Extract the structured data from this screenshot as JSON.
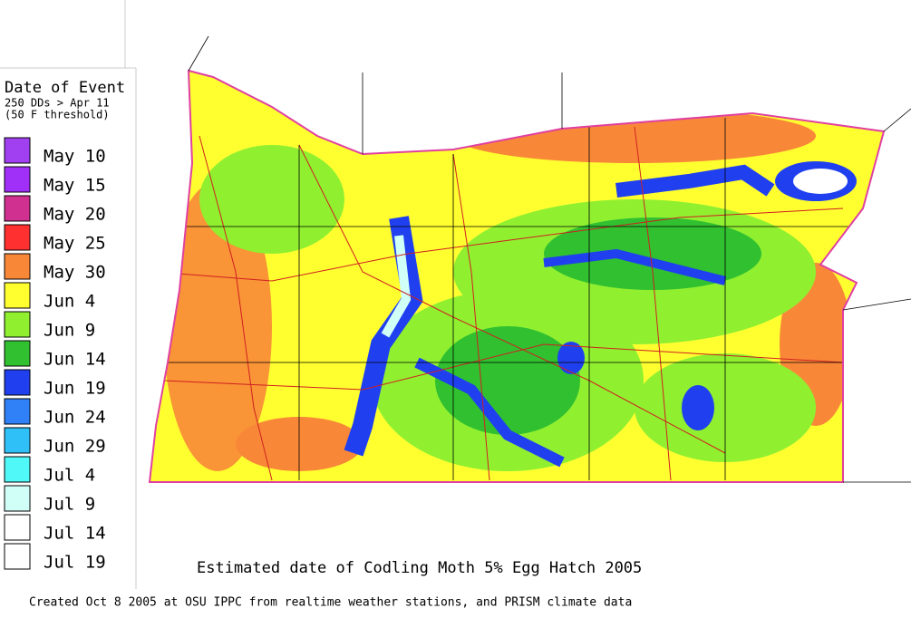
{
  "legend": {
    "title": "Date of Event",
    "subtitle": [
      "250 DDs > Apr 11",
      "(50 F threshold)"
    ],
    "items": [
      {
        "label": "May 10",
        "color": "#a040f0"
      },
      {
        "label": "May 15",
        "color": "#a030f8"
      },
      {
        "label": "May 20",
        "color": "#d03090"
      },
      {
        "label": "May 25",
        "color": "#ff3030"
      },
      {
        "label": "May 30",
        "color": "#f88838"
      },
      {
        "label": "Jun 4",
        "color": "#ffff30"
      },
      {
        "label": "Jun 9",
        "color": "#90f030"
      },
      {
        "label": "Jun 14",
        "color": "#30c030"
      },
      {
        "label": "Jun 19",
        "color": "#2040f0"
      },
      {
        "label": "Jun 24",
        "color": "#3080f8"
      },
      {
        "label": "Jun 29",
        "color": "#30c0f8"
      },
      {
        "label": "Jul 4",
        "color": "#50f8f8"
      },
      {
        "label": "Jul 9",
        "color": "#d0fff8"
      },
      {
        "label": "Jul 14",
        "color": "#ffffff"
      },
      {
        "label": "Jul 19",
        "color": "#ffffff"
      }
    ]
  },
  "caption": "Estimated date of Codling Moth 5% Egg Hatch 2005",
  "footer": "Created Oct 8 2005 at OSU IPPC from  realtime weather stations, and PRISM climate data"
}
